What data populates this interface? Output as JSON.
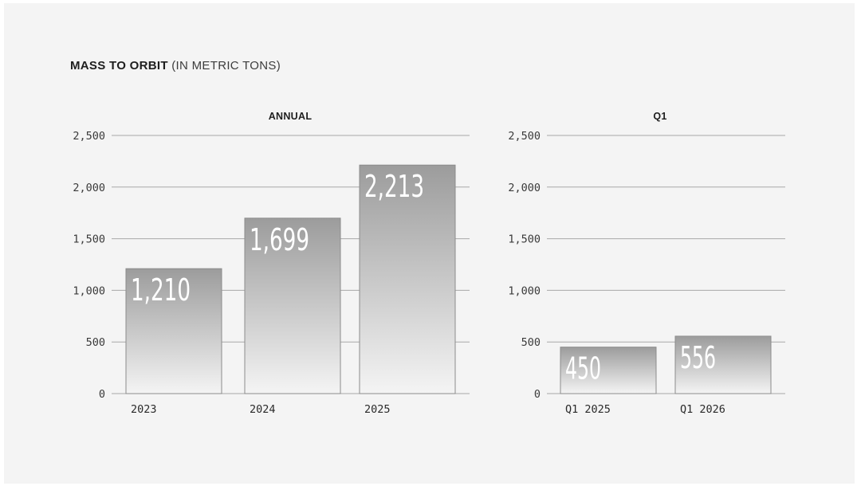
{
  "heading": {
    "bold": "MASS TO ORBIT",
    "light": "(IN METRIC TONS)"
  },
  "chart_data": [
    {
      "type": "bar",
      "title": "ANNUAL",
      "categories": [
        "2023",
        "2024",
        "2025"
      ],
      "values": [
        1210,
        1699,
        2213
      ],
      "value_labels": [
        "1,210",
        "1,699",
        "2,213"
      ],
      "ylim": [
        0,
        2500
      ],
      "yticks": [
        0,
        500,
        1000,
        1500,
        2000,
        2500
      ],
      "ytick_labels": [
        "0",
        "500",
        "1,000",
        "1,500",
        "2,000",
        "2,500"
      ],
      "grid": true
    },
    {
      "type": "bar",
      "title": "Q1",
      "categories": [
        "Q1 2025",
        "Q1 2026"
      ],
      "values": [
        450,
        556
      ],
      "value_labels": [
        "450",
        "556"
      ],
      "ylim": [
        0,
        2500
      ],
      "yticks": [
        0,
        500,
        1000,
        1500,
        2000,
        2500
      ],
      "ytick_labels": [
        "0",
        "500",
        "1,000",
        "1,500",
        "2,000",
        "2,500"
      ],
      "grid": true
    }
  ],
  "colors": {
    "bar_top": "#9c9c9c",
    "bar_bottom": "#f4f4f4",
    "grid": "#a8a8a8",
    "bar_stroke": "#8c8c8c"
  }
}
